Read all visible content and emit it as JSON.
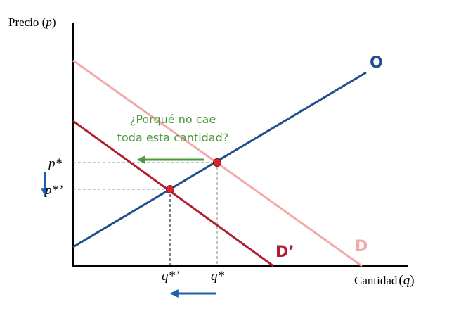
{
  "axes": {
    "y_label": "Precio (",
    "y_symbol": "p",
    "y_close": ")",
    "x_label": "Cantidad",
    "x_open": "(",
    "x_symbol": "q",
    "x_close": ")"
  },
  "curves": {
    "supply_label": "O",
    "demand_label": "D",
    "new_demand_label": "D’"
  },
  "annotation": {
    "line1": "¿Porqué no cae",
    "line2": "toda esta cantidad?"
  },
  "ticks": {
    "p_star": "p*",
    "p_star_prime": "p*’",
    "q_star": "q*",
    "q_star_prime": "q*’"
  },
  "colors": {
    "supply": "#1f4e8c",
    "demand": "#f4a9a8",
    "new_demand": "#b01e2d",
    "equilibrium_point": "#d9262b",
    "annotation": "#4e9a3c",
    "shift_arrow": "#1f5fa8",
    "axis": "#000000",
    "guide": "#888888"
  }
}
